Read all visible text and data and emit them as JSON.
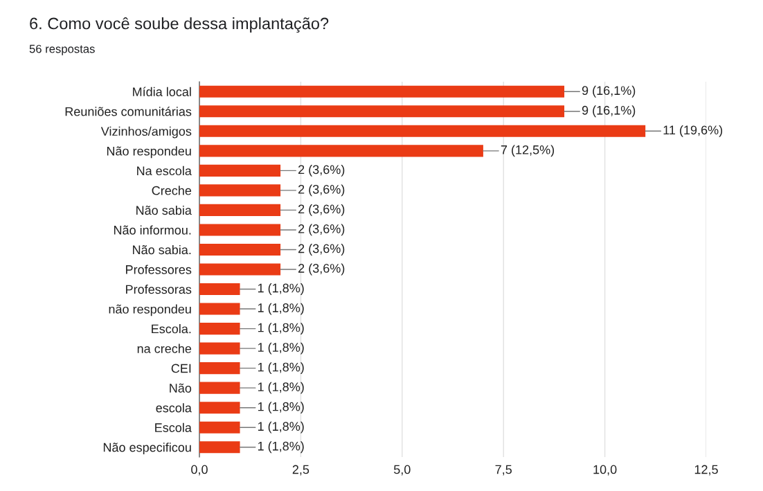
{
  "chart_data": {
    "type": "bar",
    "orientation": "horizontal",
    "title": "6. Como você soube dessa implantação?",
    "subtitle": "56 respostas",
    "categories": [
      "Mídia local",
      "Reuniões comunitárias",
      "Vizinhos/amigos",
      "Não respondeu",
      "Na escola",
      "Creche",
      "Não sabia",
      "Não informou.",
      "Não sabia.",
      "Professores",
      "Professoras",
      "não respondeu",
      "Escola.",
      "na creche",
      "CEI",
      "Não",
      "escola",
      "Escola",
      "Não especificou"
    ],
    "values": [
      9,
      9,
      11,
      7,
      2,
      2,
      2,
      2,
      2,
      2,
      1,
      1,
      1,
      1,
      1,
      1,
      1,
      1,
      1
    ],
    "value_labels": [
      "9 (16,1%)",
      "9 (16,1%)",
      "11 (19,6%)",
      "7 (12,5%)",
      "2 (3,6%)",
      "2 (3,6%)",
      "2 (3,6%)",
      "2 (3,6%)",
      "2 (3,6%)",
      "2 (3,6%)",
      "1 (1,8%)",
      "1 (1,8%)",
      "1 (1,8%)",
      "1 (1,8%)",
      "1 (1,8%)",
      "1 (1,8%)",
      "1 (1,8%)",
      "1 (1,8%)",
      "1 (1,8%)"
    ],
    "color": "#ea3b15",
    "xlim": [
      0,
      12.5
    ],
    "xticks": [
      {
        "value": 0,
        "label": "0,0"
      },
      {
        "value": 2.5,
        "label": "2,5"
      },
      {
        "value": 5,
        "label": "5,0"
      },
      {
        "value": 7.5,
        "label": "7,5"
      },
      {
        "value": 10,
        "label": "10,0"
      },
      {
        "value": 12.5,
        "label": "12,5"
      }
    ],
    "grid": "x"
  }
}
